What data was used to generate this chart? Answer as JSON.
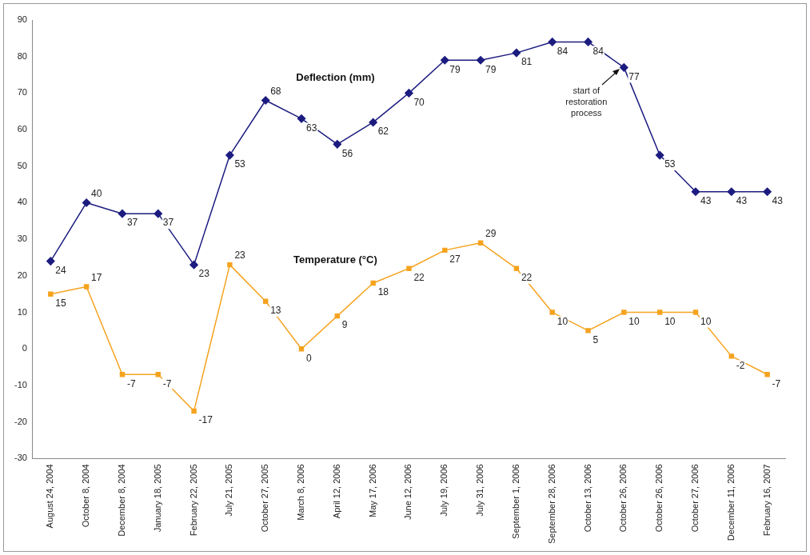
{
  "chart_data": {
    "type": "line",
    "categories": [
      "August 24, 2004",
      "October 8, 2004",
      "December 8, 2004",
      "January 18, 2005",
      "February 22, 2005",
      "July 21, 2005",
      "October 27, 2005",
      "March 8, 2006",
      "April 12, 2006",
      "May 17, 2006",
      "June 12, 2006",
      "July 19, 2006",
      "July 31, 2006",
      "September 1, 2006",
      "September 28, 2006",
      "October 13, 2006",
      "October 26, 2006",
      "October 26, 2006",
      "October 27, 2006",
      "December 11, 2006",
      "February 16, 2007"
    ],
    "series": [
      {
        "name": "Deflection (mm)",
        "color": "#1c1c80",
        "marker": "diamond",
        "values": [
          24,
          40,
          37,
          37,
          23,
          53,
          68,
          63,
          56,
          62,
          70,
          79,
          79,
          81,
          84,
          84,
          77,
          53,
          43,
          43,
          43
        ]
      },
      {
        "name": "Temperature (°C)",
        "color": "#f5a31f",
        "marker": "square",
        "values": [
          15,
          17,
          -7,
          -7,
          -17,
          23,
          13,
          0,
          9,
          18,
          22,
          27,
          29,
          22,
          10,
          5,
          10,
          10,
          10,
          -2,
          -7
        ]
      }
    ],
    "ylim": [
      -30,
      90
    ],
    "yticks": [
      -30,
      -20,
      -10,
      0,
      10,
      20,
      30,
      40,
      50,
      60,
      70,
      80,
      90
    ],
    "grid": false,
    "legend": false,
    "data_labels": true,
    "line_style": "solid",
    "annotations": [
      {
        "text": "start of restoration process",
        "x": "October 26, 2006",
        "y": 77
      }
    ]
  }
}
